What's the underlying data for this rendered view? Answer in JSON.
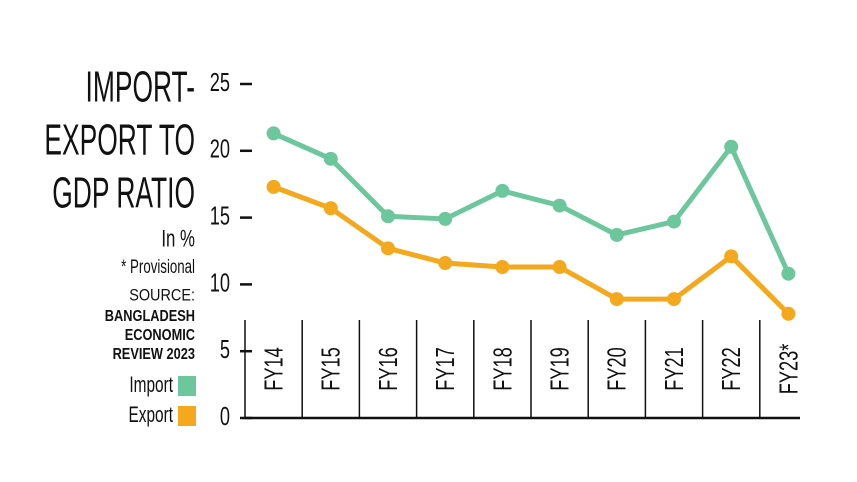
{
  "chart_data": {
    "type": "line",
    "title": [
      "IMPORT-",
      "EXPORT TO",
      "GDP RATIO"
    ],
    "subtitle": "In %",
    "note": "* Provisional",
    "source_label": "SOURCE:",
    "source": [
      "BANGLADESH",
      "ECONOMIC",
      "REVIEW 2023"
    ],
    "categories": [
      "FY14",
      "FY15",
      "FY16",
      "FY17",
      "FY18",
      "FY19",
      "FY20",
      "FY21",
      "FY22",
      "FY23*"
    ],
    "series": [
      {
        "name": "Import",
        "color": "#6cc79c",
        "values": [
          21.3,
          19.4,
          15.1,
          14.9,
          17.0,
          15.9,
          13.7,
          14.7,
          20.3,
          10.8
        ]
      },
      {
        "name": "Export",
        "color": "#f4a81d",
        "values": [
          17.3,
          15.7,
          12.7,
          11.6,
          11.3,
          11.3,
          8.9,
          8.9,
          12.1,
          7.8
        ]
      }
    ],
    "ylim": [
      0,
      25
    ],
    "yticks": [
      0,
      5,
      10,
      15,
      20,
      25
    ],
    "grid": false
  }
}
